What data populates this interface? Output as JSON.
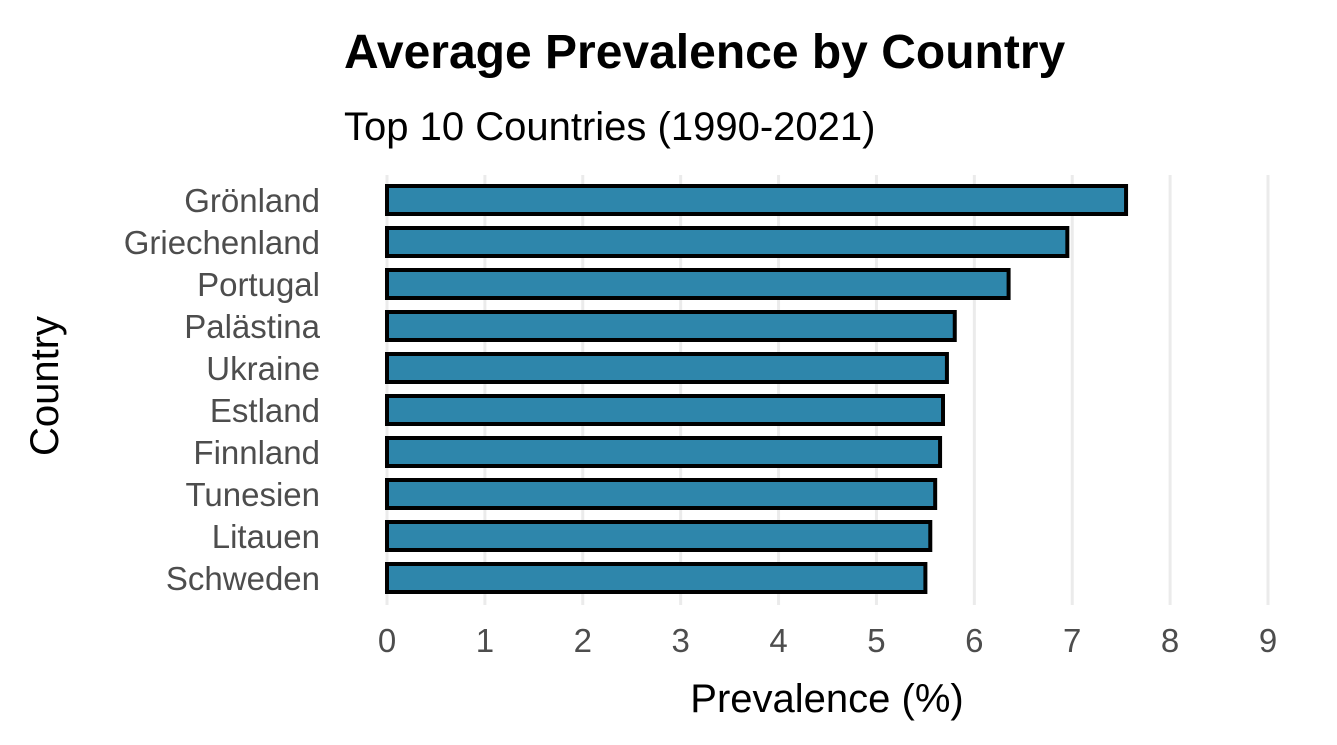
{
  "chart_data": {
    "type": "bar",
    "orientation": "horizontal",
    "title": "Average Prevalence by Country",
    "subtitle": "Top 10 Countries (1990-2021)",
    "xlabel": "Prevalence (%)",
    "ylabel": "Country",
    "xlim": [
      0,
      9
    ],
    "xticks": [
      "0",
      "1",
      "2",
      "3",
      "4",
      "5",
      "6",
      "7",
      "8",
      "9"
    ],
    "categories": [
      "Grönland",
      "Griechenland",
      "Portugal",
      "Palästina",
      "Ukraine",
      "Estland",
      "Finnland",
      "Tunesien",
      "Litauen",
      "Schweden"
    ],
    "values": [
      7.55,
      6.95,
      6.35,
      5.8,
      5.72,
      5.68,
      5.65,
      5.6,
      5.55,
      5.5
    ],
    "bar_color": "#2e86ab",
    "bar_outline": "#000000",
    "grid": "vertical-major",
    "legend": "none"
  }
}
